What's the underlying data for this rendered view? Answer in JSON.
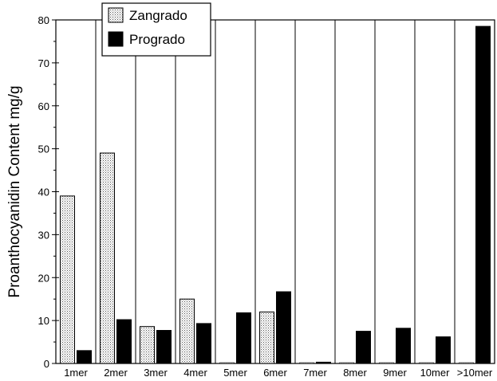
{
  "chart_data": {
    "type": "bar",
    "title": "",
    "xlabel": "",
    "ylabel": "Proanthocyanidin Content  mg/g",
    "ylim": [
      0,
      80
    ],
    "yticks": [
      0,
      10,
      20,
      30,
      40,
      50,
      60,
      70,
      80
    ],
    "grid": "vertical separators between categories",
    "legend_position": "top-left",
    "categories": [
      "1mer",
      "2mer",
      "3mer",
      "4mer",
      "5mer",
      "6mer",
      "7mer",
      "8mer",
      "9mer",
      "10mer",
      ">10mer"
    ],
    "series": [
      {
        "name": "Zangrado",
        "fill": "dotted",
        "values": [
          39,
          49,
          8.6,
          15,
          0,
          12,
          0,
          0,
          0,
          0,
          0
        ]
      },
      {
        "name": "Progradо",
        "fill": "solid",
        "values": [
          3,
          10.2,
          7.7,
          9.3,
          11.8,
          16.7,
          0.3,
          7.5,
          8.2,
          6.2,
          78.5
        ]
      }
    ]
  }
}
